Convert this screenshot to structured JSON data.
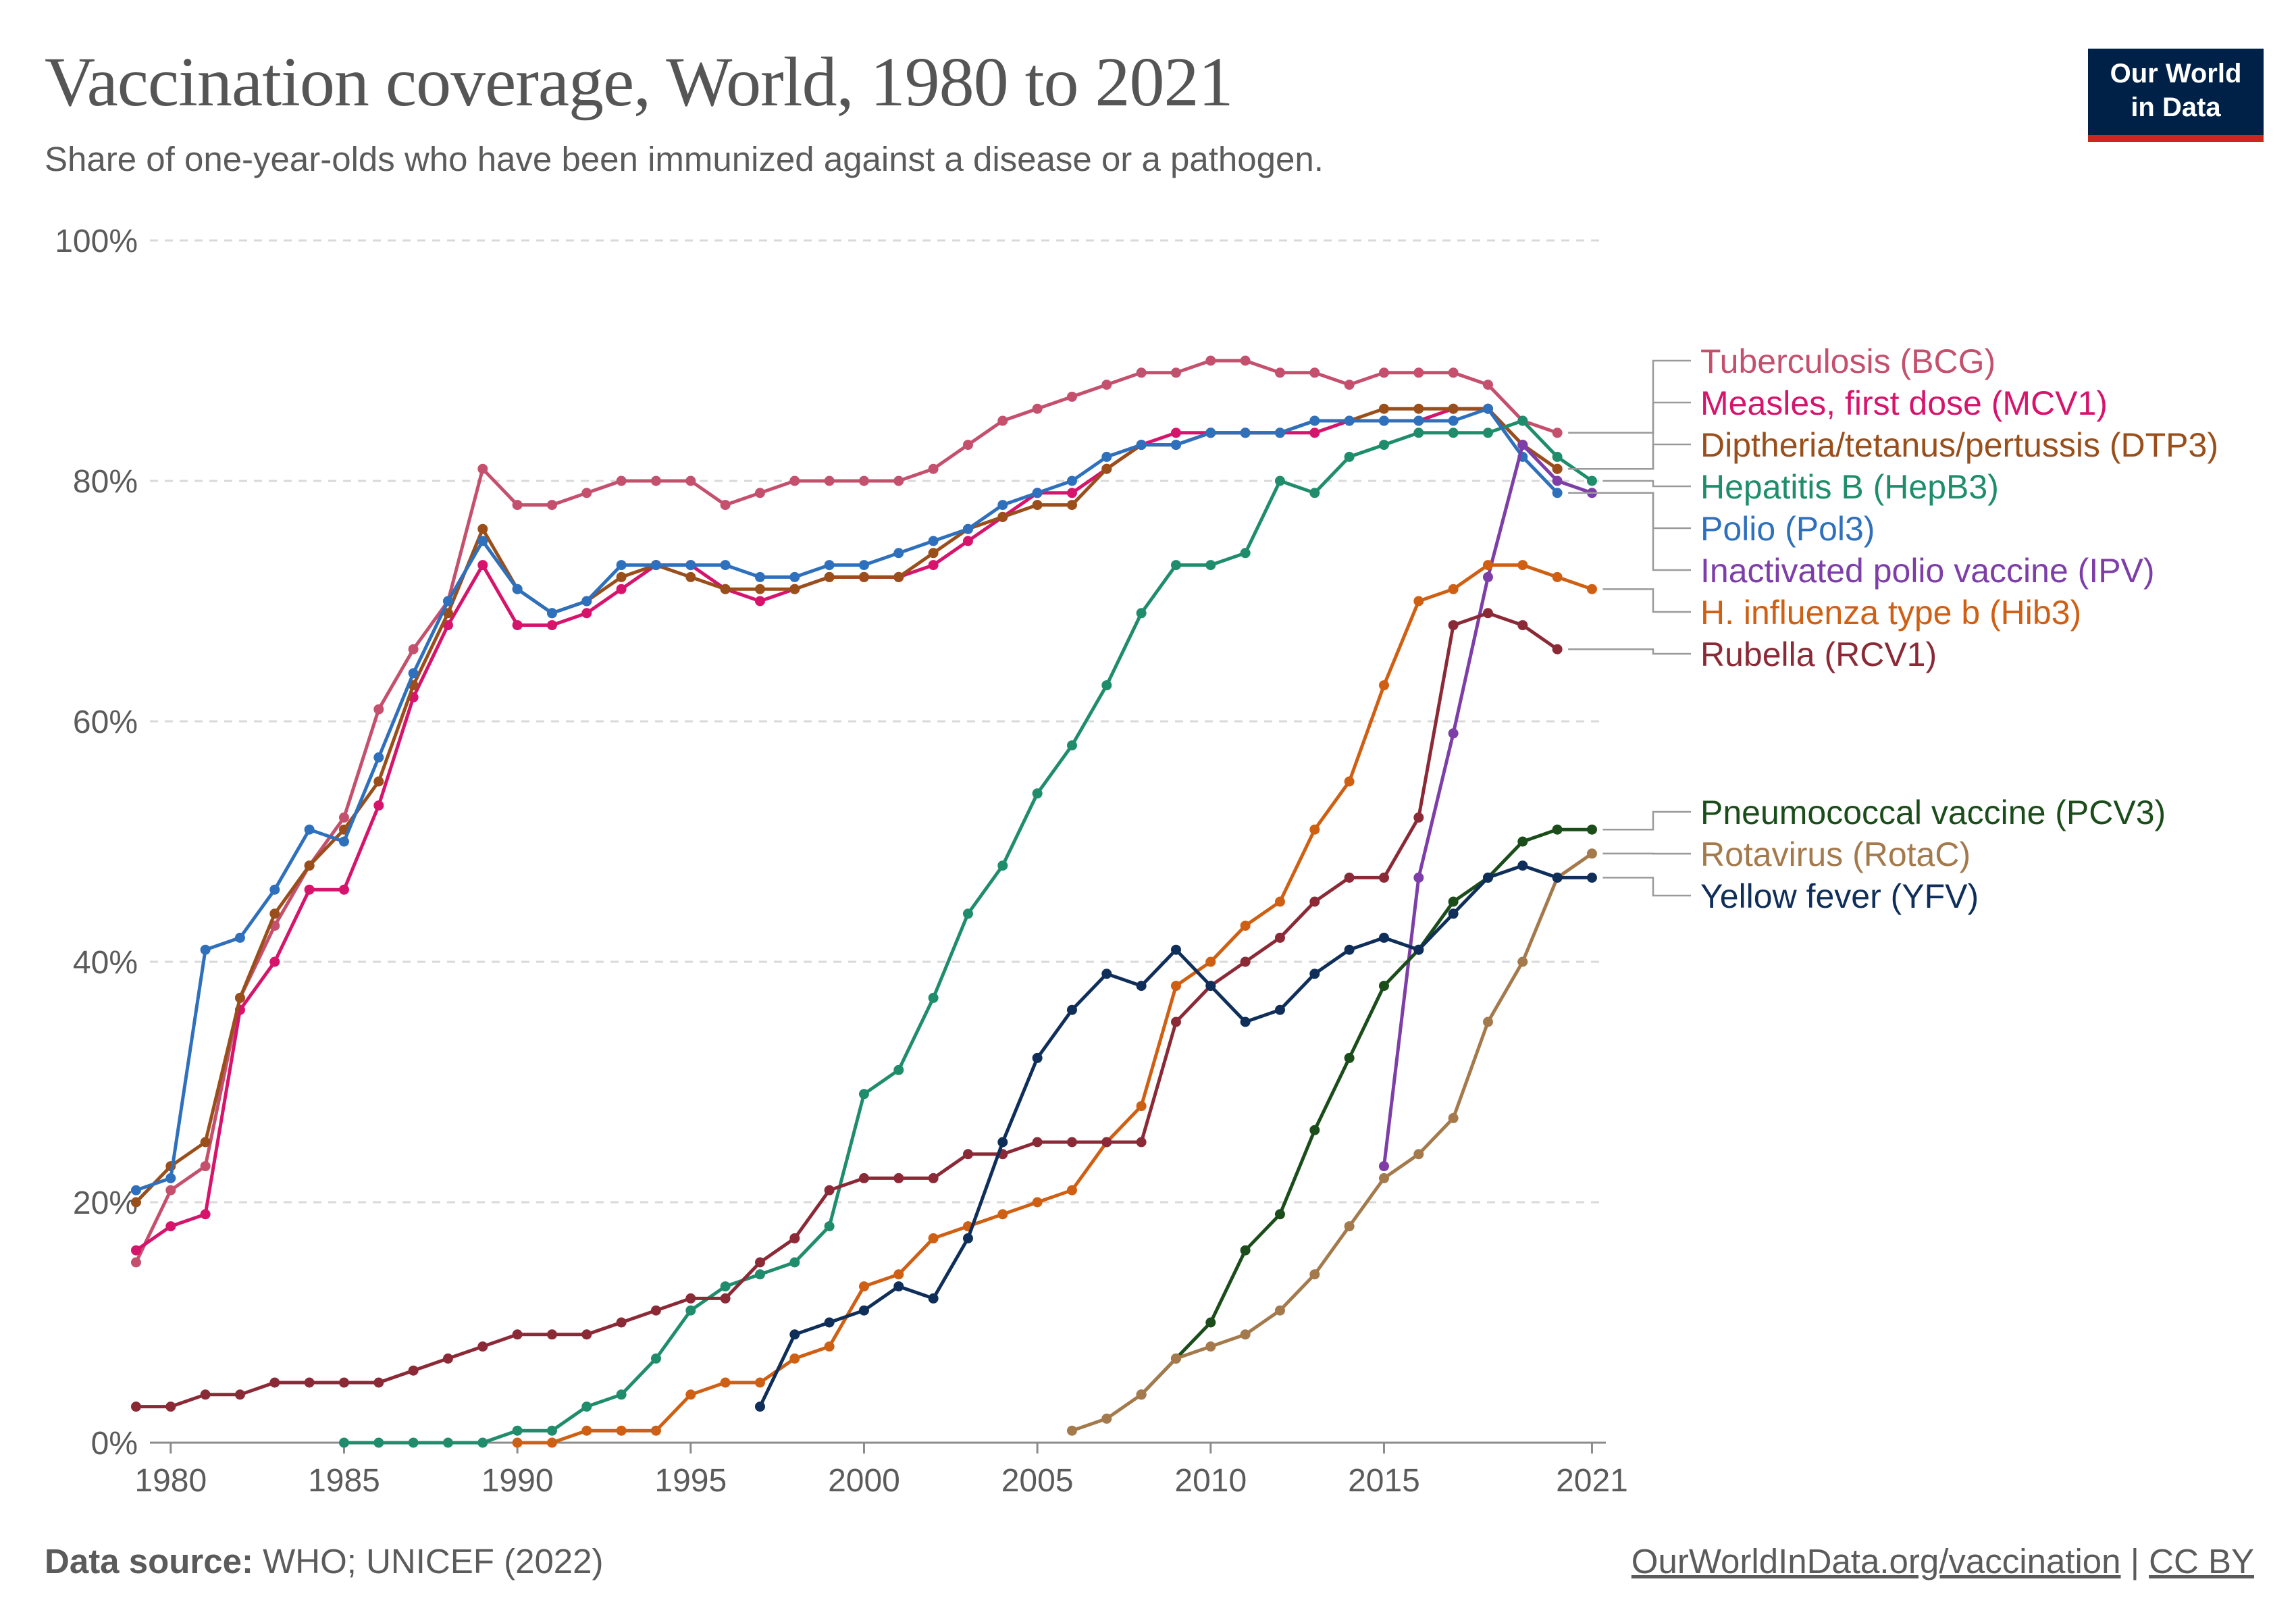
{
  "header": {
    "title": "Vaccination coverage, World, 1980 to 2021",
    "subtitle": "Share of one-year-olds who have been immunized against a disease or a pathogen."
  },
  "logo": {
    "line1": "Our World",
    "line2": "in Data"
  },
  "footer": {
    "source_label": "Data source:",
    "source_text": " WHO; UNICEF (2022)",
    "url": "OurWorldInData.org/vaccination",
    "separator": " | ",
    "license": "CC BY"
  },
  "chart_data": {
    "type": "line",
    "title": "Vaccination coverage, World, 1980 to 2021",
    "xlabel": "",
    "ylabel": "",
    "xlim": [
      1979.4,
      2021.4
    ],
    "ylim": [
      0,
      100
    ],
    "y_ticks": [
      0,
      20,
      40,
      60,
      80,
      100
    ],
    "y_tick_labels": [
      "0%",
      "20%",
      "40%",
      "60%",
      "80%",
      "100%"
    ],
    "x_ticks": [
      1980,
      1985,
      1990,
      1995,
      2000,
      2005,
      2010,
      2015,
      2021
    ],
    "x_tick_labels": [
      "1980",
      "1985",
      "1990",
      "1995",
      "2000",
      "2005",
      "2010",
      "2015",
      "2021"
    ],
    "grid": "horizontal dashed",
    "legend_position": "right",
    "series": [
      {
        "name": "Tuberculosis (BCG)",
        "color": "#c4506e",
        "start_year": 1979,
        "values": [
          15,
          21,
          23,
          37,
          43,
          48,
          52,
          61,
          66,
          70,
          81,
          78,
          78,
          79,
          80,
          80,
          80,
          78,
          79,
          80,
          80,
          80,
          80,
          81,
          83,
          85,
          86,
          87,
          88,
          89,
          89,
          90,
          90,
          89,
          89,
          88,
          89,
          89,
          89,
          88,
          85,
          84
        ]
      },
      {
        "name": "Measles, first dose (MCV1)",
        "color": "#d6146c",
        "start_year": 1979,
        "values": [
          16,
          18,
          19,
          36,
          40,
          46,
          46,
          53,
          62,
          68,
          73,
          68,
          68,
          69,
          71,
          73,
          73,
          71,
          70,
          71,
          72,
          72,
          72,
          73,
          75,
          77,
          79,
          79,
          81,
          83,
          84,
          84,
          84,
          84,
          84,
          85,
          85,
          85,
          86,
          86,
          83,
          81
        ]
      },
      {
        "name": "Diptheria/tetanus/pertussis (DTP3)",
        "color": "#9a4f1b",
        "start_year": 1979,
        "values": [
          20,
          23,
          25,
          37,
          44,
          48,
          51,
          55,
          63,
          69,
          76,
          71,
          69,
          70,
          72,
          73,
          72,
          71,
          71,
          71,
          72,
          72,
          72,
          74,
          76,
          77,
          78,
          78,
          81,
          83,
          83,
          84,
          84,
          84,
          85,
          85,
          86,
          86,
          86,
          86,
          83,
          81
        ]
      },
      {
        "name": "Hepatitis B (HepB3)",
        "color": "#1f8d6b",
        "start_year": 1985,
        "values": [
          0,
          0,
          0,
          0,
          0,
          1,
          1,
          3,
          4,
          7,
          11,
          13,
          14,
          15,
          18,
          29,
          31,
          37,
          44,
          48,
          54,
          58,
          63,
          69,
          73,
          73,
          74,
          80,
          79,
          82,
          83,
          84,
          84,
          84,
          85,
          82,
          80
        ]
      },
      {
        "name": "Polio (Pol3)",
        "color": "#2f70bd",
        "start_year": 1979,
        "values": [
          21,
          22,
          41,
          42,
          46,
          51,
          50,
          57,
          64,
          70,
          75,
          71,
          69,
          70,
          73,
          73,
          73,
          73,
          72,
          72,
          73,
          73,
          74,
          75,
          76,
          78,
          79,
          80,
          82,
          83,
          83,
          84,
          84,
          84,
          85,
          85,
          85,
          85,
          85,
          86,
          82,
          79
        ]
      },
      {
        "name": "Inactivated polio vaccine (IPV)",
        "color": "#7d3ea8",
        "start_year": 2015,
        "values": [
          23,
          47,
          59,
          72,
          83,
          80,
          79
        ]
      },
      {
        "name": "H. influenza type b (Hib3)",
        "color": "#cf5f13",
        "start_year": 1990,
        "values": [
          0,
          0,
          1,
          1,
          1,
          4,
          5,
          5,
          7,
          8,
          13,
          14,
          17,
          18,
          19,
          20,
          21,
          25,
          28,
          38,
          40,
          43,
          45,
          51,
          55,
          63,
          70,
          71,
          73,
          73,
          72,
          71
        ]
      },
      {
        "name": "Rubella (RCV1)",
        "color": "#8b2a36",
        "start_year": 1979,
        "values": [
          3,
          3,
          4,
          4,
          5,
          5,
          5,
          5,
          6,
          7,
          8,
          9,
          9,
          9,
          10,
          11,
          12,
          12,
          15,
          17,
          21,
          22,
          22,
          22,
          24,
          24,
          25,
          25,
          25,
          25,
          35,
          38,
          40,
          42,
          45,
          47,
          47,
          52,
          68,
          69,
          68,
          66
        ]
      },
      {
        "name": "Pneumococcal vaccine (PCV3)",
        "color": "#1b4d1b",
        "start_year": 2008,
        "values": [
          4,
          7,
          10,
          16,
          19,
          26,
          32,
          38,
          41,
          45,
          47,
          50,
          51,
          51
        ]
      },
      {
        "name": "Rotavirus (RotaC)",
        "color": "#a47a4c",
        "start_year": 2006,
        "values": [
          1,
          2,
          4,
          7,
          8,
          9,
          11,
          14,
          18,
          22,
          24,
          27,
          35,
          40,
          47,
          49
        ]
      },
      {
        "name": "Yellow fever (YFV)",
        "color": "#0f2f5a",
        "start_year": 1997,
        "values": [
          3,
          9,
          10,
          11,
          13,
          12,
          17,
          25,
          32,
          36,
          39,
          38,
          41,
          38,
          35,
          36,
          39,
          41,
          42,
          41,
          44,
          47,
          48,
          47,
          47
        ]
      }
    ]
  }
}
